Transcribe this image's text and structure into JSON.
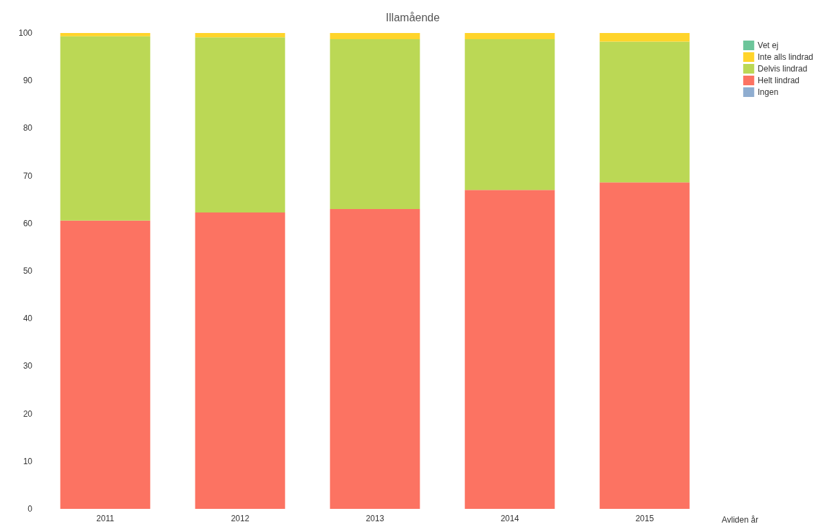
{
  "chart_data": {
    "type": "bar",
    "title": "Illamående",
    "xlabel": "Avliden år",
    "categories": [
      "2011",
      "2012",
      "2013",
      "2014",
      "2015"
    ],
    "stacked": true,
    "series": [
      {
        "name": "Ingen",
        "color": "#8fadd0",
        "values": [
          0,
          0,
          0,
          0,
          0
        ]
      },
      {
        "name": "Helt lindrad",
        "color": "#fc7362",
        "values": [
          60.6,
          62.3,
          63.0,
          67.0,
          68.6
        ]
      },
      {
        "name": "Delvis lindrad",
        "color": "#bbd855",
        "values": [
          38.7,
          36.8,
          35.7,
          31.7,
          29.6
        ]
      },
      {
        "name": "Inte alls lindrad",
        "color": "#ffd42a",
        "values": [
          0.7,
          0.9,
          1.3,
          1.3,
          1.8
        ]
      },
      {
        "name": "Vet ej",
        "color": "#6cc59a",
        "values": [
          0,
          0,
          0,
          0,
          0
        ]
      }
    ],
    "ylim": [
      0,
      100
    ],
    "yticks": [
      0,
      10,
      20,
      30,
      40,
      50,
      60,
      70,
      80,
      90,
      100
    ],
    "grid": false,
    "legend": "top right"
  }
}
